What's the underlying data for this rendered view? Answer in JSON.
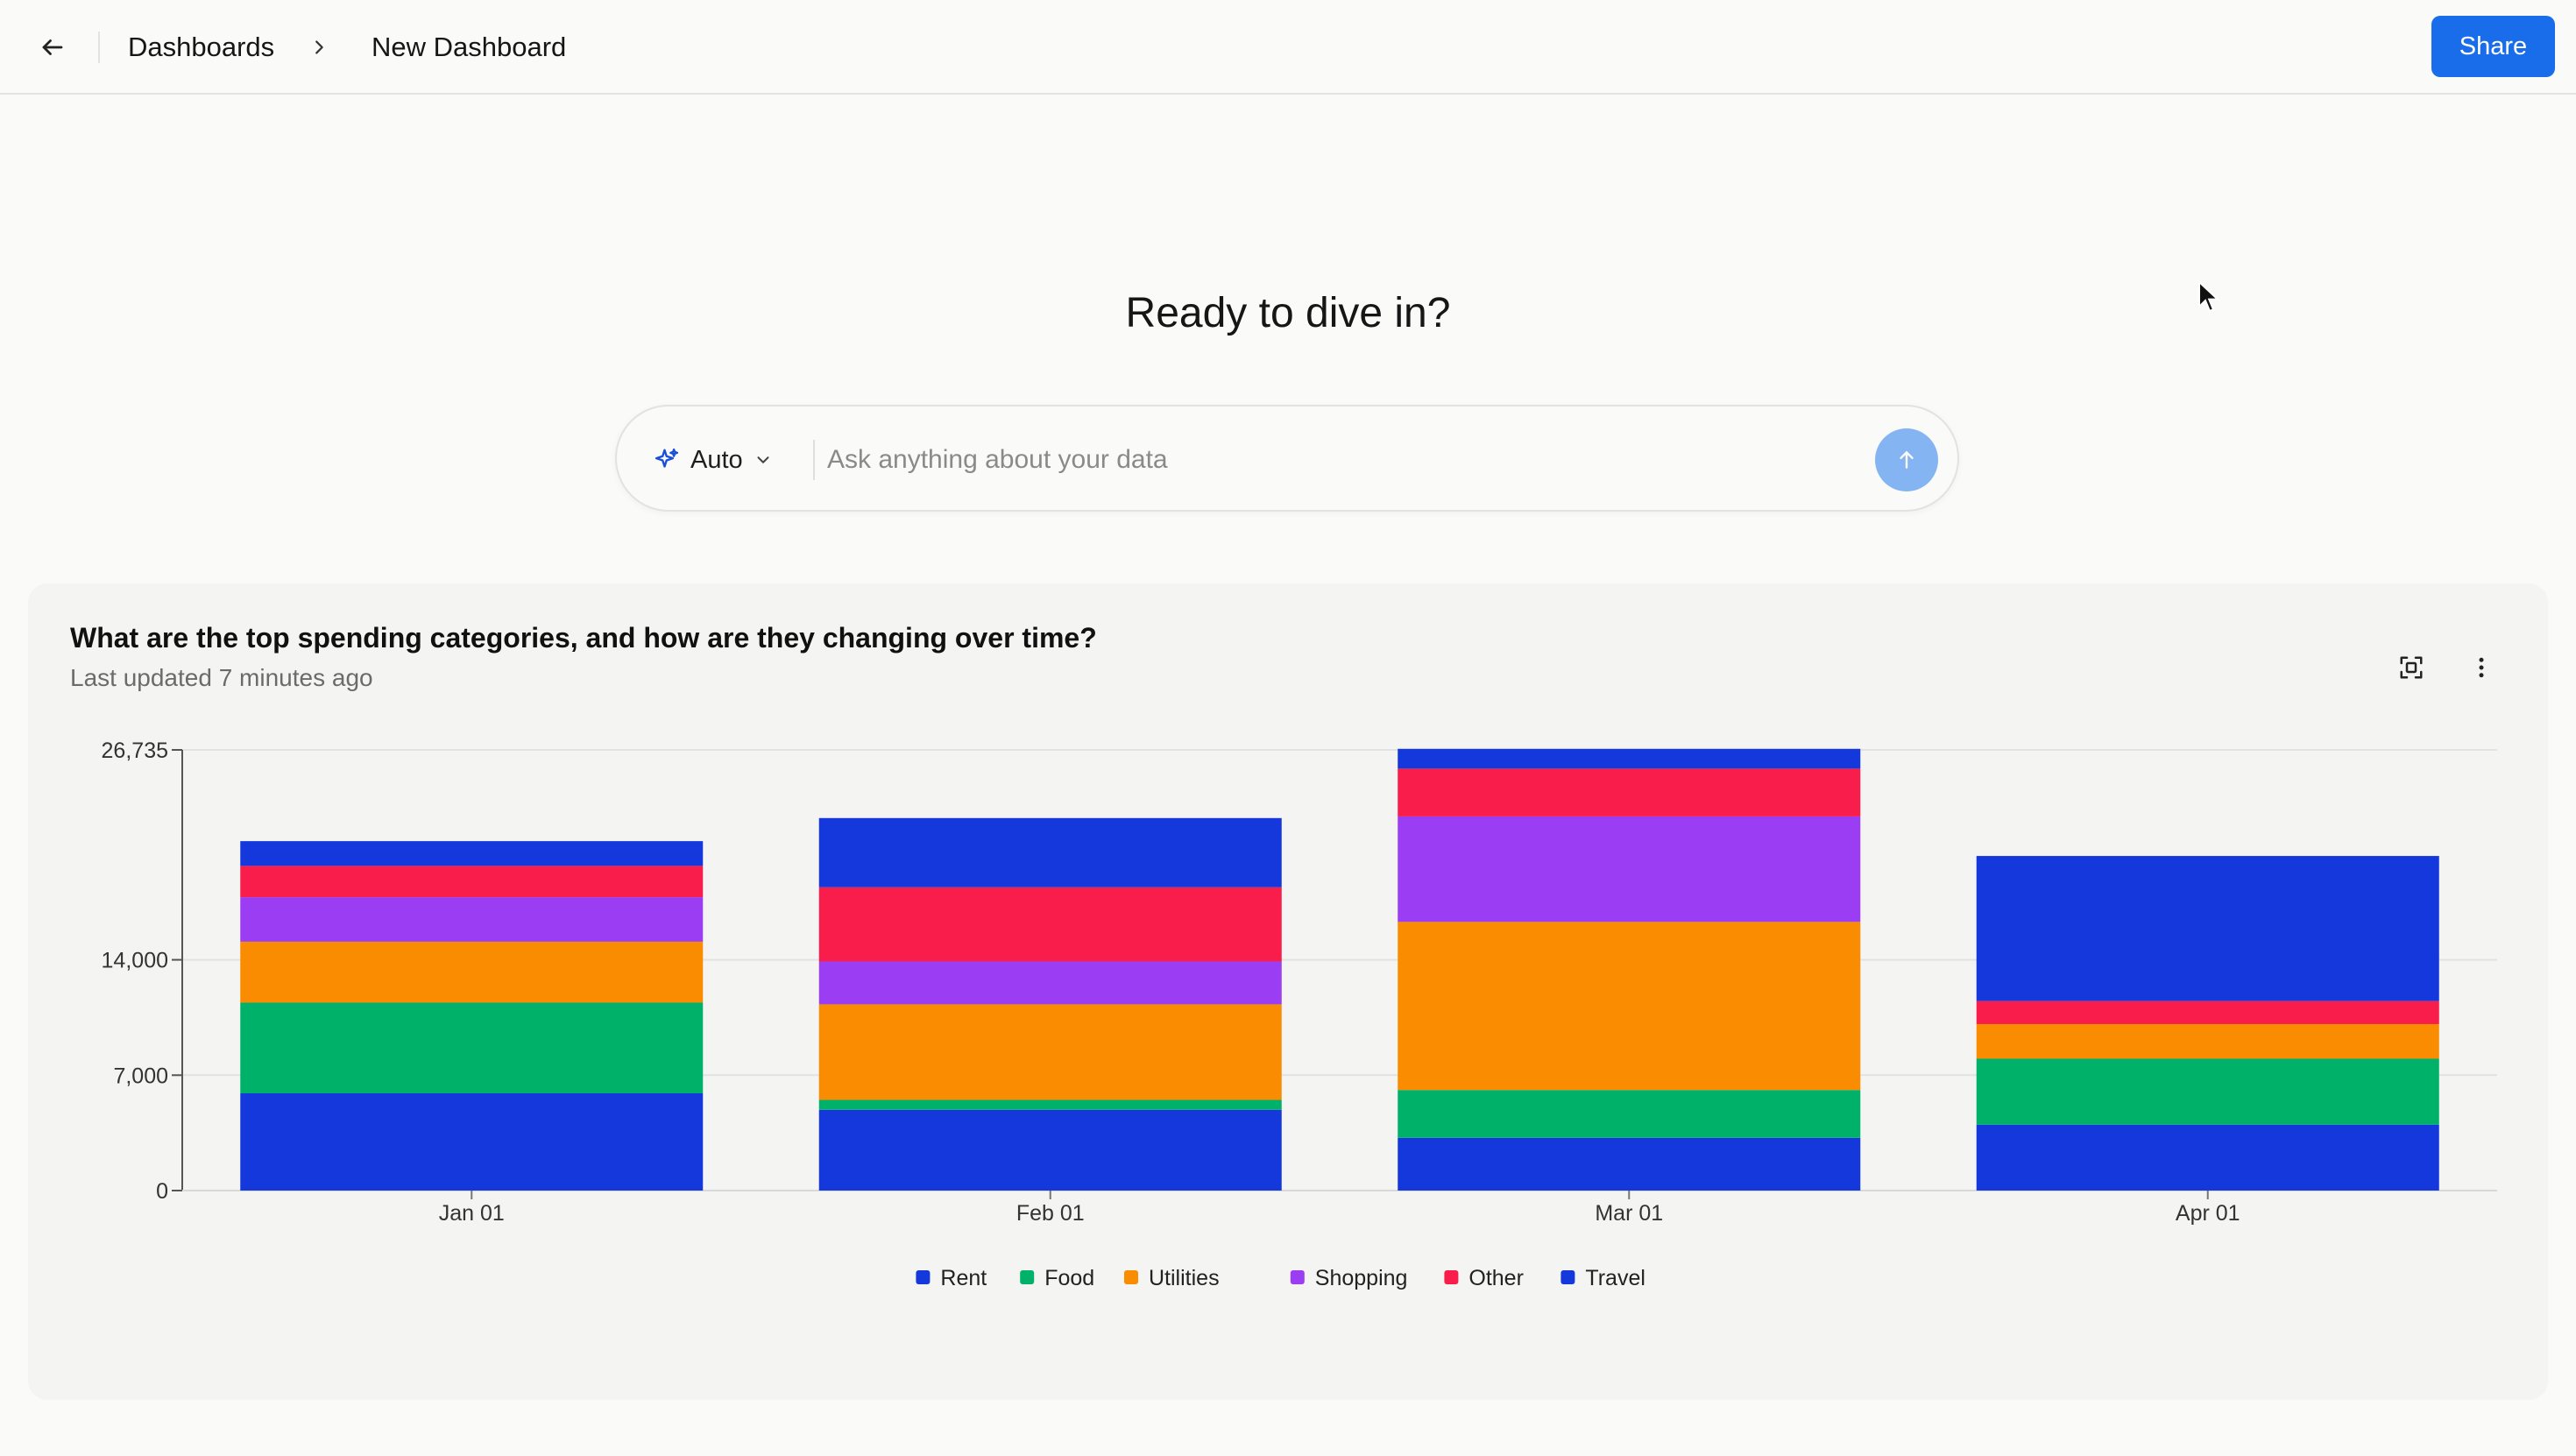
{
  "topbar": {
    "back_icon": "arrow-left-icon",
    "breadcrumb_parent": "Dashboards",
    "breadcrumb_sep_icon": "chevron-right-icon",
    "breadcrumb_current": "New Dashboard",
    "share_label": "Share"
  },
  "hero": {
    "title": "Ready to dive in?"
  },
  "ask": {
    "mode_icon": "sparkles-icon",
    "mode_label": "Auto",
    "mode_chevron_icon": "chevron-down-icon",
    "placeholder": "Ask anything about your data",
    "send_icon": "arrow-up-icon"
  },
  "card": {
    "title": "What are the top spending categories, and how are they changing over time?",
    "subtitle": "Last updated 7 minutes ago",
    "fullscreen_icon": "focus-frame-icon",
    "menu_icon": "more-vertical-icon"
  },
  "chart_data": {
    "type": "bar",
    "stacked": true,
    "categories": [
      "Jan 01",
      "Feb 01",
      "Mar 01",
      "Apr 01"
    ],
    "ylim": [
      0,
      26735
    ],
    "yticks": [
      0,
      7000,
      14000,
      26735
    ],
    "ytick_labels": [
      "0",
      "7,000",
      "14,000",
      "26,735"
    ],
    "grid": true,
    "legend_position": "bottom",
    "series": [
      {
        "name": "Rent",
        "color": "#1438dc",
        "values": [
          5900,
          4900,
          3200,
          4000
        ]
      },
      {
        "name": "Food",
        "color": "#00b16a",
        "values": [
          5500,
          600,
          2900,
          4000
        ]
      },
      {
        "name": "Utilities",
        "color": "#f98c00",
        "values": [
          3700,
          5800,
          10200,
          2100
        ]
      },
      {
        "name": "Shopping",
        "color": "#9b3df2",
        "values": [
          2700,
          2600,
          6400,
          0
        ]
      },
      {
        "name": "Other",
        "color": "#f81d4a",
        "values": [
          1900,
          4500,
          2900,
          1400
        ]
      },
      {
        "name": "Travel",
        "color": "#1438dc",
        "values": [
          1500,
          4200,
          1200,
          8800
        ]
      }
    ]
  }
}
